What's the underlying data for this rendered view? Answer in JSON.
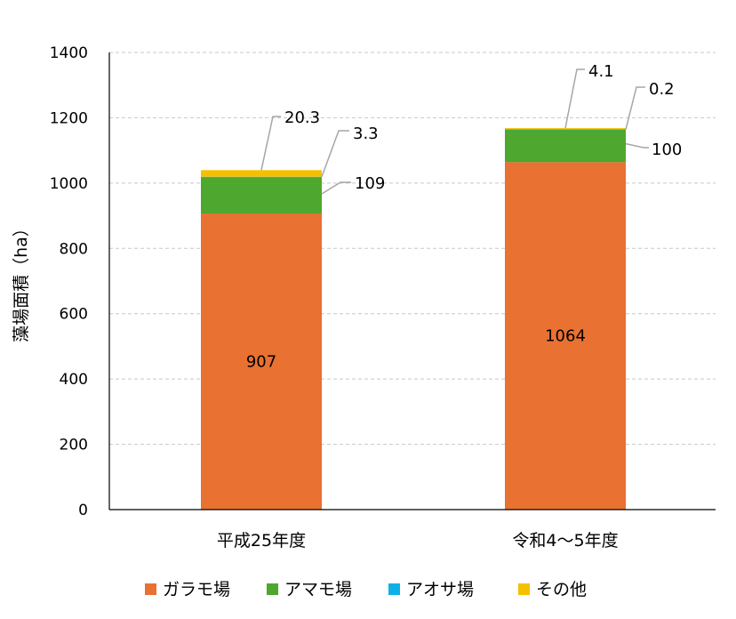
{
  "chart_data": {
    "type": "bar",
    "stacked": true,
    "title": "",
    "xlabel": "",
    "ylabel": "藻場面積（ha）",
    "ylim": [
      0,
      1400
    ],
    "yticks": [
      0,
      200,
      400,
      600,
      800,
      1000,
      1200,
      1400
    ],
    "grid": true,
    "legend_position": "bottom",
    "categories": [
      "平成25年度",
      "令和4〜5年度"
    ],
    "series": [
      {
        "name": "ガラモ場",
        "color": "#E97132",
        "values": [
          907,
          1064
        ],
        "labels": [
          "907",
          "1064"
        ]
      },
      {
        "name": "アマモ場",
        "color": "#4EA72E",
        "values": [
          109,
          100
        ],
        "labels": [
          "109",
          "100"
        ]
      },
      {
        "name": "アオサ場",
        "color": "#0FB0E8",
        "values": [
          3.3,
          0.2
        ],
        "labels": [
          "3.3",
          "0.2"
        ]
      },
      {
        "name": "その他",
        "color": "#F5C000",
        "values": [
          20.3,
          4.1
        ],
        "labels": [
          "20.3",
          "4.1"
        ]
      }
    ]
  }
}
